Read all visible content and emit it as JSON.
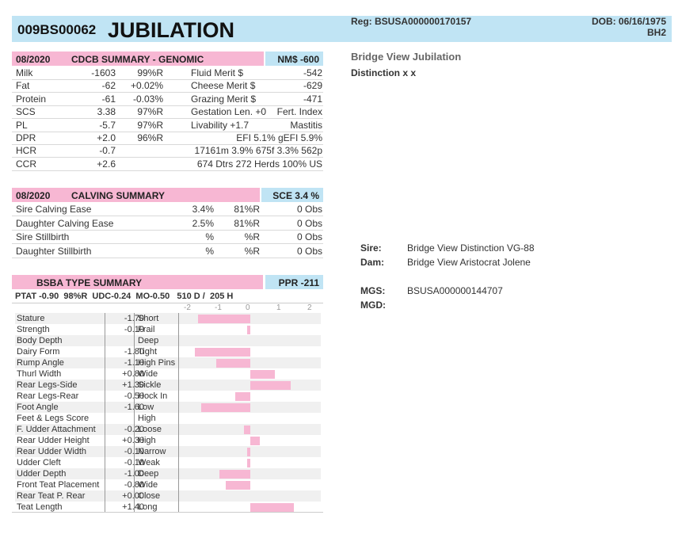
{
  "header": {
    "id": "009BS00062",
    "name": "JUBILATION",
    "reg": "Reg: BSUSA000000170157",
    "dob": "DOB: 06/16/1975",
    "code": "BH2"
  },
  "right": {
    "full_name": "Bridge View Jubilation",
    "distinction": "Distinction x x",
    "sire_label": "Sire:",
    "sire": "Bridge View Distinction VG-88",
    "dam_label": "Dam:",
    "dam": "Bridge View Aristocrat Jolene",
    "mgs_label": "MGS:",
    "mgs": "BSUSA000000144707",
    "mgd_label": "MGD:"
  },
  "genomic": {
    "date": "08/2020",
    "title": "CDCB SUMMARY - GENOMIC",
    "nm": "NM$ -600",
    "rows": [
      {
        "trait": "Milk",
        "value": "-1603",
        "rel": "99%R",
        "trait2": "Fluid Merit $",
        "value2": "-542"
      },
      {
        "trait": "Fat",
        "value": "-62",
        "rel": "+0.02%",
        "trait2": "Cheese Merit $",
        "value2": "-629"
      },
      {
        "trait": "Protein",
        "value": "-61",
        "rel": "-0.03%",
        "trait2": "Grazing Merit $",
        "value2": "-471"
      },
      {
        "trait": "SCS",
        "value": "3.38",
        "rel": "97%R",
        "trait2": "Gestation Len. +0",
        "value2": "Fert. Index"
      },
      {
        "trait": "PL",
        "value": "-5.7",
        "rel": "97%R",
        "trait2": "Livability   +1.7",
        "value2": "Mastitis"
      },
      {
        "trait": "DPR",
        "value": "+2.0",
        "rel": "96%R",
        "trait2": "EFI  5.1%  gEFI  5.9%",
        "value2": ""
      },
      {
        "trait": "HCR",
        "value": "-0.7",
        "rel": "",
        "trait2": "17161m  3.9%  675f  3.3%  562p",
        "value2": ""
      },
      {
        "trait": "CCR",
        "value": "+2.6",
        "rel": "",
        "trait2": "674 Dtrs  272 Herds  100% US",
        "value2": ""
      }
    ]
  },
  "calving": {
    "date": "08/2020",
    "title": "CALVING SUMMARY",
    "sce": "SCE 3.4 %",
    "rows": [
      {
        "trait": "Sire Calving Ease",
        "pct": "3.4%",
        "rel": "81%R",
        "obs": "0 Obs"
      },
      {
        "trait": "Daughter Calving Ease",
        "pct": "2.5%",
        "rel": "81%R",
        "obs": "0 Obs"
      },
      {
        "trait": "Sire Stillbirth",
        "pct": "%",
        "rel": "%R",
        "obs": "0 Obs"
      },
      {
        "trait": "Daughter Stillbirth",
        "pct": "%",
        "rel": "%R",
        "obs": "0 Obs"
      }
    ]
  },
  "type": {
    "title": "BSBA TYPE SUMMARY",
    "ppr": "PPR -211",
    "ptat_line": "PTAT -0.90  98%R  UDC-0.24  MO-0.50   510 D /  205 H",
    "scale": [
      "-2",
      "-1",
      "0",
      "1",
      "2"
    ],
    "rows": [
      {
        "trait": "Stature",
        "value": "-1.70",
        "desc": "Short",
        "v": -1.7
      },
      {
        "trait": "Strength",
        "value": "-0.10",
        "desc": "Frail",
        "v": -0.1
      },
      {
        "trait": "Body Depth",
        "value": "",
        "desc": "Deep",
        "v": 0
      },
      {
        "trait": "Dairy Form",
        "value": "-1.80",
        "desc": "Tight",
        "v": -1.8
      },
      {
        "trait": "Rump Angle",
        "value": "-1.10",
        "desc": "High Pins",
        "v": -1.1
      },
      {
        "trait": "Thurl Width",
        "value": "+0.80",
        "desc": "Wide",
        "v": 0.8
      },
      {
        "trait": "Rear Legs-Side",
        "value": "+1.30",
        "desc": "Sickle",
        "v": 1.3
      },
      {
        "trait": "Rear Legs-Rear",
        "value": "-0.50",
        "desc": "Hock In",
        "v": -0.5
      },
      {
        "trait": "Foot Angle",
        "value": "-1.60",
        "desc": "Low",
        "v": -1.6
      },
      {
        "trait": "Feet & Legs Score",
        "value": "",
        "desc": "High",
        "v": 0
      },
      {
        "trait": "F. Udder Attachment",
        "value": "-0.20",
        "desc": "Loose",
        "v": -0.2
      },
      {
        "trait": "Rear Udder Height",
        "value": "+0.30",
        "desc": "High",
        "v": 0.3
      },
      {
        "trait": "Rear Udder Width",
        "value": "-0.10",
        "desc": "Narrow",
        "v": -0.1
      },
      {
        "trait": "Udder Cleft",
        "value": "-0.10",
        "desc": "Weak",
        "v": -0.1
      },
      {
        "trait": "Udder Depth",
        "value": "-1.00",
        "desc": "Deep",
        "v": -1.0
      },
      {
        "trait": "Front Teat Placement",
        "value": "-0.80",
        "desc": "Wide",
        "v": -0.8
      },
      {
        "trait": "Rear Teat P. Rear",
        "value": "+0.00",
        "desc": "Close",
        "v": 0
      },
      {
        "trait": "Teat Length",
        "value": "+1.40",
        "desc": "Long",
        "v": 1.4
      }
    ]
  }
}
